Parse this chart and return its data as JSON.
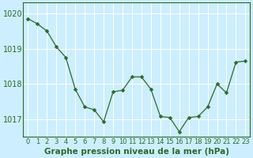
{
  "x": [
    0,
    1,
    2,
    3,
    4,
    5,
    6,
    7,
    8,
    9,
    10,
    11,
    12,
    13,
    14,
    15,
    16,
    17,
    18,
    19,
    20,
    21,
    22,
    23
  ],
  "y": [
    1019.85,
    1019.7,
    1019.5,
    1019.05,
    1018.75,
    1017.85,
    1017.35,
    1017.27,
    1016.93,
    1017.78,
    1017.82,
    1018.2,
    1018.2,
    1017.85,
    1017.08,
    1017.05,
    1016.65,
    1017.05,
    1017.08,
    1017.35,
    1018.0,
    1017.75,
    1018.62,
    1018.65
  ],
  "line_color": "#2d6a2d",
  "marker": "D",
  "marker_size": 2.5,
  "background_color": "#cceeff",
  "grid_color": "#ffffff",
  "ylabel_ticks": [
    1017,
    1018,
    1019,
    1020
  ],
  "ylim": [
    1016.5,
    1020.3
  ],
  "xlim": [
    -0.5,
    23.5
  ],
  "xlabel": "Graphe pression niveau de la mer (hPa)",
  "xlabel_fontsize": 7.5,
  "tick_fontsize": 6,
  "title": ""
}
